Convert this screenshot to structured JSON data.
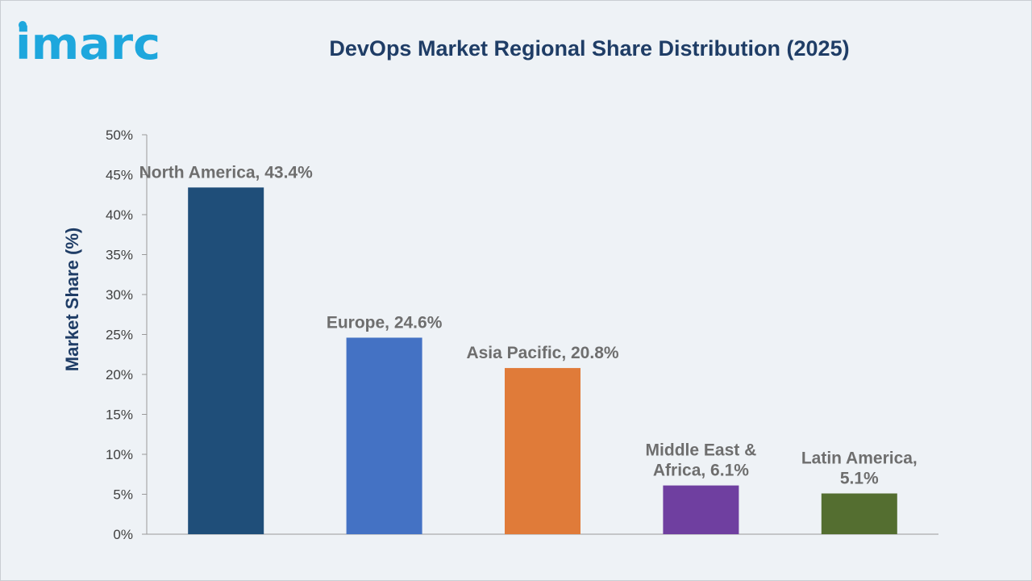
{
  "brand": {
    "logo_text": "imarc",
    "logo_color": "#1ea7dd"
  },
  "chart_data": {
    "type": "bar",
    "title": "DevOps Market Regional Share Distribution (2025)",
    "xlabel": "",
    "ylabel": "Market Share (%)",
    "ylim": [
      0,
      50
    ],
    "yticks": [
      0,
      5,
      10,
      15,
      20,
      25,
      30,
      35,
      40,
      45,
      50
    ],
    "ytick_suffix": "%",
    "grid": false,
    "legend": "none",
    "categories": [
      "North America",
      "Europe",
      "Asia Pacific",
      "Middle East & Africa",
      "Latin America"
    ],
    "values": [
      43.4,
      24.6,
      20.8,
      6.1,
      5.1
    ],
    "colors": [
      "#1f4e79",
      "#4472c4",
      "#e07b39",
      "#6f3fa0",
      "#546e30"
    ],
    "data_labels": [
      [
        "North America, 43.4%"
      ],
      [
        "Europe, 24.6%"
      ],
      [
        "Asia Pacific, 20.8%"
      ],
      [
        "Middle East &",
        "Africa, 6.1%"
      ],
      [
        "Latin America,",
        "5.1%"
      ]
    ]
  }
}
